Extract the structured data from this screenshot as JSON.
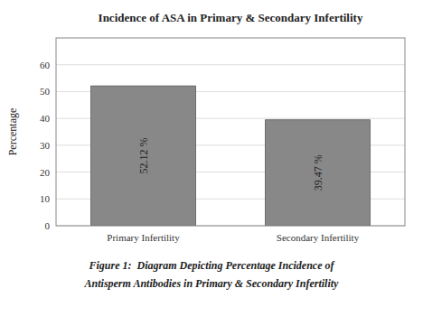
{
  "chart_data": {
    "type": "bar",
    "title": "Incidence of ASA in Primary & Secondary Infertility",
    "ylabel": "Percentage",
    "categories": [
      "Primary Infertility",
      "Secondary Infertility"
    ],
    "values": [
      52.12,
      39.47
    ],
    "value_labels": [
      "52.12 %",
      "39.47 %"
    ],
    "data_labels": true,
    "color": "#888888",
    "ylim": [
      0,
      70
    ],
    "yticks": [
      0,
      10,
      20,
      30,
      40,
      50,
      60
    ],
    "grid": true,
    "annotations": [
      "Figure 1:  Diagram Depicting Percentage Incidence of",
      "Antisperm Antibodies in Primary & Secondary Infertility"
    ]
  }
}
